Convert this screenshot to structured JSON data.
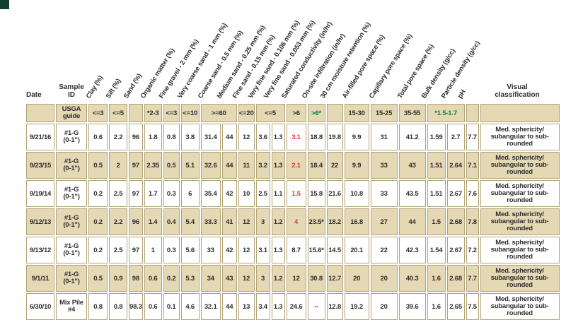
{
  "colors": {
    "tan": "#e5d8b4",
    "border": "#b1a478",
    "red": "#dd3a33",
    "green": "#00873f",
    "text": "#2e2e2e",
    "corner": "#123f2d"
  },
  "table": {
    "headers": {
      "date": "Date",
      "sample_id": "Sample\nID",
      "visual": "Visual\nclassification",
      "rotated": [
        "Clay (%)",
        "Silt (%)",
        "Sand (%)",
        "Organic matter (%)",
        "Fine gravel - 2 mm (%)",
        "Very coarse sand - 1 mm (%)",
        "Coarse sand - 0.5 mm (%)",
        "Medium sand - 0.25 mm (%)",
        "Fine sand - 0.15 mm (%)",
        "Very fine sand - 0.106 mm (%)",
        "Very fine sand - 0.053 mm (%)",
        "Saturated conductivity (in/hr)",
        "On-site infiltration (in/hr)",
        "30 cm moisture retention (%)",
        "Air-filled pore space (%)",
        "Capillary pore space (%)",
        "Total pore space (%)",
        "Bulk density (g/cc)",
        "Particle density (g/cc)",
        "pH"
      ]
    },
    "guide_row": {
      "label": "USGA\nguide",
      "cells": [
        {
          "t": "<=3"
        },
        {
          "t": "<=5"
        },
        {
          "t": ""
        },
        {
          "t": "*2-3"
        },
        {
          "t": "<=3"
        },
        {
          "t": "<=10"
        },
        {
          "t": ">=60",
          "span": 2
        },
        {
          "t": "<=20"
        },
        {
          "t": "<=5",
          "span": 2
        },
        {
          "t": ">6"
        },
        {
          "t": ">6*",
          "green": true
        },
        {
          "t": ""
        },
        {
          "t": "15-30"
        },
        {
          "t": "15-25"
        },
        {
          "t": "35-55"
        },
        {
          "t": "*1.5-1.7",
          "span": 2,
          "green": true
        },
        {
          "t": ""
        },
        {
          "t": ""
        }
      ]
    },
    "rows": [
      {
        "date": "9/21/16",
        "sample": "#1-G\n(0-1\")",
        "values": [
          "0.6",
          "2.2",
          "96",
          "1.8",
          "0.8",
          "3.8",
          "31.4",
          "44",
          "12",
          "3.6",
          "1.3",
          "3.1",
          "18.8",
          "19.8",
          "9.9",
          "31",
          "41.2",
          "1.59",
          "2.7",
          "7.7"
        ],
        "red": [
          11
        ],
        "visual": "Med. sphericity/\nsubangular to sub-\nrounded"
      },
      {
        "date": "9/23/15",
        "sample": "#1-G\n(0-1\")",
        "values": [
          "0.5",
          "2",
          "97",
          "2.35",
          "0.5",
          "5.1",
          "32.6",
          "44",
          "11",
          "3.2",
          "1.3",
          "2.1",
          "18.4",
          "22",
          "9.9",
          "33",
          "43",
          "1.51",
          "2.64",
          "7.1"
        ],
        "red": [
          11
        ],
        "visual": "Med. sphericity/\nsubangular to sub-\nrounded"
      },
      {
        "date": "9/19/14",
        "sample": "#1-G\n(0-1\")",
        "values": [
          "0.2",
          "2.5",
          "97",
          "1.7",
          "0.3",
          "6",
          "35.4",
          "42",
          "10",
          "2.5",
          "1.1",
          "1.5",
          "15.8",
          "21.6",
          "10.8",
          "33",
          "43.5",
          "1.51",
          "2.67",
          "7.6"
        ],
        "red": [
          11
        ],
        "visual": "Med. sphericity/\nsubangular to sub-\nrounded"
      },
      {
        "date": "9/12/13",
        "sample": "#1-G\n(0-1\")",
        "values": [
          "0.2",
          "2.2",
          "96",
          "1.4",
          "0.4",
          "5.4",
          "33.3",
          "41",
          "12",
          "3",
          "1.2",
          "4",
          "23.5*",
          "18.2",
          "16.8",
          "27",
          "44",
          "1.5",
          "2.68",
          "7.8"
        ],
        "red": [
          11
        ],
        "visual": "Med. sphericity/\nsubangular to sub-\nrounded"
      },
      {
        "date": "9/13/12",
        "sample": "#1-G\n(0-1\")",
        "values": [
          "0.2",
          "2.5",
          "97",
          "1",
          "0.3",
          "5.6",
          "33",
          "42",
          "12",
          "3.1",
          "1.3",
          "8.7",
          "15.6*",
          "14.5",
          "20.1",
          "22",
          "42.3",
          "1.54",
          "2.67",
          "7.2"
        ],
        "red": [],
        "visual": "Med. sphericity/\nsubangular to sub-\nrounded"
      },
      {
        "date": "9/1/11",
        "sample": "#1-G\n(0-1\")",
        "values": [
          "0.5",
          "0.9",
          "98",
          "0.6",
          "0.2",
          "5.3",
          "34",
          "43",
          "12",
          "3",
          "1.2",
          "12",
          "30.8",
          "12.7",
          "20",
          "20",
          "40.3",
          "1.6",
          "2.68",
          "7.7"
        ],
        "red": [],
        "visual": "Med. sphericity/\nsubangular to sub-\nrounded"
      },
      {
        "date": "6/30/10",
        "sample": "Mix Pile\n#4",
        "values": [
          "0.8",
          "0.8",
          "98.3",
          "0.6",
          "0.1",
          "4.6",
          "32.1",
          "44",
          "13",
          "3.4",
          "1.3",
          "24.6",
          "--",
          "12.8",
          "19.2",
          "20",
          "39.6",
          "1.6",
          "2.65",
          "7.5"
        ],
        "red": [],
        "visual": "Med. sphericity/\nsubangular to sub-\nrounded"
      }
    ]
  }
}
